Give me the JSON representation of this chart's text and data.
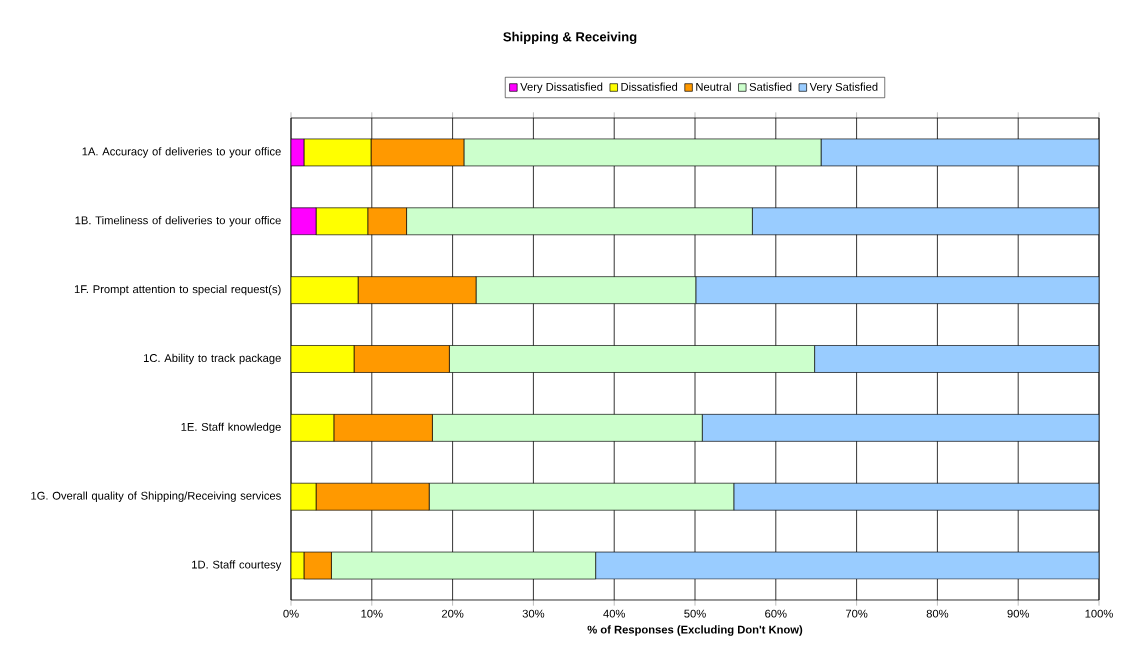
{
  "chart_data": {
    "type": "bar",
    "orientation": "horizontal",
    "stacked": true,
    "title": "Shipping & Receiving",
    "xlabel": "% of Responses (Excluding Don't Know)",
    "categories": [
      "1A. Accuracy of deliveries to your office",
      "1B. Timeliness of deliveries to your office",
      "1F. Prompt attention to special request(s)",
      "1C. Ability to track package",
      "1E. Staff knowledge",
      "1G. Overall quality of Shipping/Receiving services",
      "1D. Staff courtesy"
    ],
    "series": [
      {
        "name": "Very Dissatisfied",
        "color": "#ff00ff",
        "values": [
          1.6,
          3.1,
          0,
          0,
          0,
          0,
          0
        ]
      },
      {
        "name": "Dissatisfied",
        "color": "#ffff00",
        "values": [
          8.3,
          6.4,
          8.3,
          7.8,
          5.3,
          3.1,
          1.6
        ]
      },
      {
        "name": "Neutral",
        "color": "#ff9900",
        "values": [
          11.5,
          4.8,
          14.6,
          11.8,
          12.2,
          14.0,
          3.4
        ]
      },
      {
        "name": "Satisfied",
        "color": "#ccffcc",
        "values": [
          44.2,
          42.8,
          27.2,
          45.2,
          33.4,
          37.7,
          32.7
        ]
      },
      {
        "name": "Very Satisfied",
        "color": "#99ccff",
        "values": [
          34.4,
          42.9,
          49.9,
          35.2,
          49.1,
          45.2,
          62.3
        ]
      }
    ],
    "xlim": [
      0,
      100
    ],
    "xticks": [
      {
        "value": 0,
        "label": "0%"
      },
      {
        "value": 10,
        "label": "10%"
      },
      {
        "value": 20,
        "label": "20%"
      },
      {
        "value": 30,
        "label": "30%"
      },
      {
        "value": 40,
        "label": "40%"
      },
      {
        "value": 50,
        "label": "50%"
      },
      {
        "value": 60,
        "label": "60%"
      },
      {
        "value": 70,
        "label": "70%"
      },
      {
        "value": 80,
        "label": "80%"
      },
      {
        "value": 90,
        "label": "90%"
      },
      {
        "value": 100,
        "label": "100%"
      }
    ],
    "grid": "x",
    "legend": "top"
  }
}
